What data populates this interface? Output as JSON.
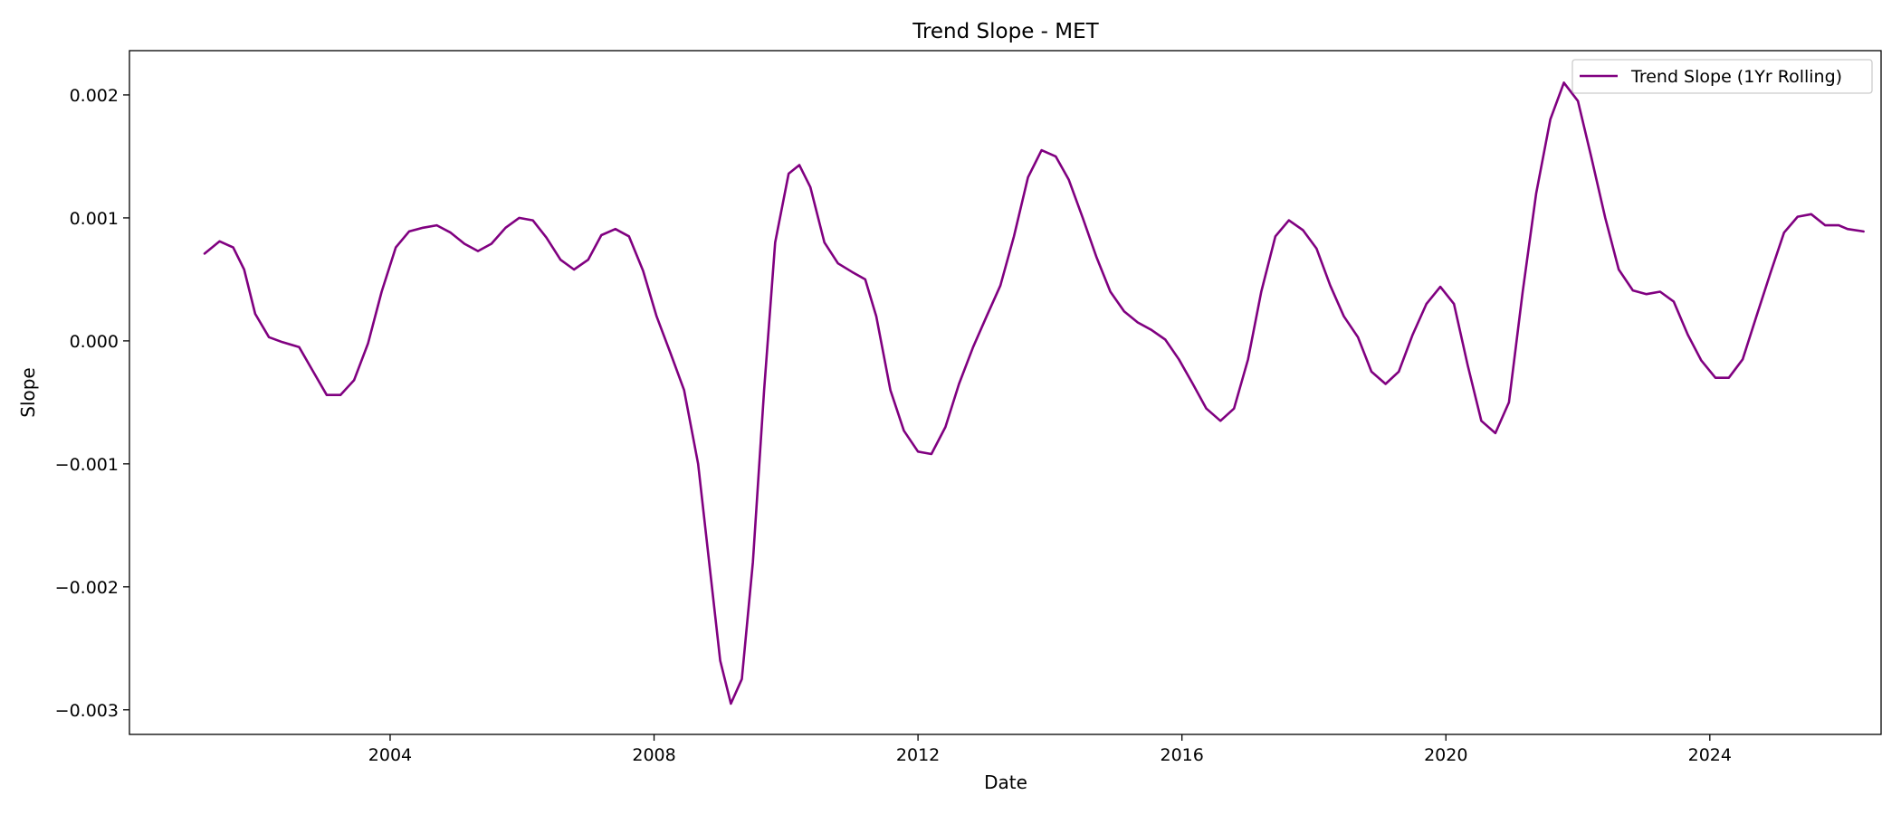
{
  "chart_data": {
    "type": "line",
    "title": "Trend Slope - MET",
    "xlabel": "Date",
    "ylabel": "Slope",
    "x_axis_type": "date",
    "xlim": [
      "2000-01-19",
      "2026-08-06"
    ],
    "ylim": [
      -0.0032,
      0.00236
    ],
    "x_ticks": [
      "2004",
      "2008",
      "2012",
      "2016",
      "2020",
      "2024"
    ],
    "y_ticks": [
      {
        "value": -0.003,
        "label": "−0.003"
      },
      {
        "value": -0.002,
        "label": "−0.002"
      },
      {
        "value": -0.001,
        "label": "−0.001"
      },
      {
        "value": 0.0,
        "label": "0.000"
      },
      {
        "value": 0.001,
        "label": "0.001"
      },
      {
        "value": 0.002,
        "label": "0.002"
      }
    ],
    "grid": false,
    "legend_position": "upper right",
    "series": [
      {
        "name": "Trend Slope (1Yr Rolling)",
        "color": "#800080",
        "points": [
          [
            "2001-03-10",
            0.00071
          ],
          [
            "2001-06-01",
            0.00081
          ],
          [
            "2001-08-15",
            0.00076
          ],
          [
            "2001-10-15",
            0.00058
          ],
          [
            "2001-12-15",
            0.00022
          ],
          [
            "2002-03-01",
            3e-05
          ],
          [
            "2002-05-15",
            -1e-05
          ],
          [
            "2002-08-15",
            -5e-05
          ],
          [
            "2002-11-01",
            -0.00025
          ],
          [
            "2003-01-15",
            -0.00044
          ],
          [
            "2003-04-01",
            -0.00044
          ],
          [
            "2003-06-15",
            -0.00032
          ],
          [
            "2003-09-01",
            -2e-05
          ],
          [
            "2003-11-15",
            0.0004
          ],
          [
            "2004-02-01",
            0.00076
          ],
          [
            "2004-04-15",
            0.00089
          ],
          [
            "2004-07-01",
            0.00092
          ],
          [
            "2004-09-15",
            0.00094
          ],
          [
            "2004-12-01",
            0.00088
          ],
          [
            "2005-02-15",
            0.00079
          ],
          [
            "2005-05-01",
            0.00073
          ],
          [
            "2005-07-15",
            0.00079
          ],
          [
            "2005-10-01",
            0.00092
          ],
          [
            "2005-12-15",
            0.001
          ],
          [
            "2006-03-01",
            0.00098
          ],
          [
            "2006-05-15",
            0.00084
          ],
          [
            "2006-08-01",
            0.00066
          ],
          [
            "2006-10-15",
            0.00058
          ],
          [
            "2007-01-01",
            0.00066
          ],
          [
            "2007-03-15",
            0.00086
          ],
          [
            "2007-06-01",
            0.00091
          ],
          [
            "2007-08-15",
            0.00085
          ],
          [
            "2007-11-01",
            0.00057
          ],
          [
            "2008-01-15",
            0.0002
          ],
          [
            "2008-04-01",
            -0.0001
          ],
          [
            "2008-06-15",
            -0.0004
          ],
          [
            "2008-09-01",
            -0.001
          ],
          [
            "2008-11-01",
            -0.0018
          ],
          [
            "2009-01-01",
            -0.0026
          ],
          [
            "2009-03-01",
            -0.00295
          ],
          [
            "2009-05-01",
            -0.00275
          ],
          [
            "2009-07-01",
            -0.0018
          ],
          [
            "2009-09-01",
            -0.0004
          ],
          [
            "2009-11-01",
            0.0008
          ],
          [
            "2010-01-15",
            0.00136
          ],
          [
            "2010-03-15",
            0.00143
          ],
          [
            "2010-05-15",
            0.00125
          ],
          [
            "2010-08-01",
            0.0008
          ],
          [
            "2010-10-15",
            0.00063
          ],
          [
            "2011-01-01",
            0.00056
          ],
          [
            "2011-03-15",
            0.0005
          ],
          [
            "2011-05-15",
            0.0002
          ],
          [
            "2011-08-01",
            -0.0004
          ],
          [
            "2011-10-15",
            -0.00073
          ],
          [
            "2012-01-01",
            -0.0009
          ],
          [
            "2012-03-15",
            -0.00092
          ],
          [
            "2012-06-01",
            -0.0007
          ],
          [
            "2012-08-15",
            -0.00035
          ],
          [
            "2012-11-01",
            -5e-05
          ],
          [
            "2013-01-15",
            0.0002
          ],
          [
            "2013-04-01",
            0.00045
          ],
          [
            "2013-06-15",
            0.00085
          ],
          [
            "2013-09-01",
            0.00133
          ],
          [
            "2013-11-15",
            0.00155
          ],
          [
            "2014-02-01",
            0.0015
          ],
          [
            "2014-04-15",
            0.00131
          ],
          [
            "2014-07-01",
            0.001
          ],
          [
            "2014-09-15",
            0.00068
          ],
          [
            "2014-12-01",
            0.0004
          ],
          [
            "2015-02-15",
            0.00024
          ],
          [
            "2015-05-01",
            0.00015
          ],
          [
            "2015-07-15",
            9e-05
          ],
          [
            "2015-10-01",
            1e-05
          ],
          [
            "2015-12-15",
            -0.00015
          ],
          [
            "2016-03-01",
            -0.00035
          ],
          [
            "2016-05-15",
            -0.00055
          ],
          [
            "2016-08-01",
            -0.00065
          ],
          [
            "2016-10-15",
            -0.00055
          ],
          [
            "2017-01-01",
            -0.00015
          ],
          [
            "2017-03-15",
            0.0004
          ],
          [
            "2017-06-01",
            0.00085
          ],
          [
            "2017-08-15",
            0.00098
          ],
          [
            "2017-11-01",
            0.0009
          ],
          [
            "2018-01-15",
            0.00075
          ],
          [
            "2018-04-01",
            0.00045
          ],
          [
            "2018-06-15",
            0.0002
          ],
          [
            "2018-09-01",
            3e-05
          ],
          [
            "2018-11-15",
            -0.00025
          ],
          [
            "2019-02-01",
            -0.00035
          ],
          [
            "2019-04-15",
            -0.00025
          ],
          [
            "2019-07-01",
            5e-05
          ],
          [
            "2019-09-15",
            0.0003
          ],
          [
            "2019-12-01",
            0.00044
          ],
          [
            "2020-02-15",
            0.0003
          ],
          [
            "2020-05-01",
            -0.0002
          ],
          [
            "2020-07-15",
            -0.00065
          ],
          [
            "2020-10-01",
            -0.00075
          ],
          [
            "2020-12-15",
            -0.0005
          ],
          [
            "2021-03-01",
            0.0004
          ],
          [
            "2021-05-15",
            0.0012
          ],
          [
            "2021-08-01",
            0.0018
          ],
          [
            "2021-10-15",
            0.0021
          ],
          [
            "2022-01-01",
            0.00195
          ],
          [
            "2022-03-15",
            0.0015
          ],
          [
            "2022-06-01",
            0.001
          ],
          [
            "2022-08-15",
            0.00058
          ],
          [
            "2022-11-01",
            0.00041
          ],
          [
            "2023-01-15",
            0.00038
          ],
          [
            "2023-04-01",
            0.0004
          ],
          [
            "2023-06-15",
            0.00032
          ],
          [
            "2023-09-01",
            5e-05
          ],
          [
            "2023-11-15",
            -0.00016
          ],
          [
            "2024-02-01",
            -0.0003
          ],
          [
            "2024-04-15",
            -0.0003
          ],
          [
            "2024-07-01",
            -0.00015
          ],
          [
            "2024-09-15",
            0.0002
          ],
          [
            "2024-12-01",
            0.00055
          ],
          [
            "2025-02-15",
            0.00088
          ],
          [
            "2025-05-01",
            0.00101
          ],
          [
            "2025-07-15",
            0.00103
          ],
          [
            "2025-10-01",
            0.00094
          ],
          [
            "2025-12-15",
            0.00094
          ],
          [
            "2026-02-01",
            0.00091
          ],
          [
            "2026-05-01",
            0.00089
          ]
        ]
      }
    ]
  }
}
